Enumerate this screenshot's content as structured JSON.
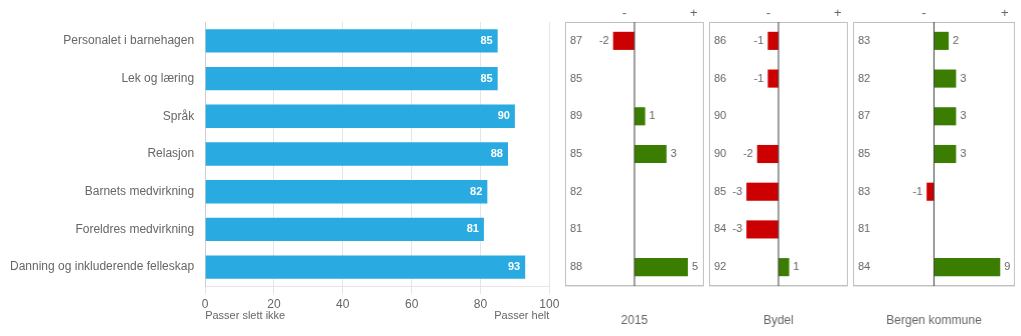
{
  "chart_data": [
    {
      "type": "bar",
      "orientation": "horizontal",
      "categories": [
        "Personalet i barnehagen",
        "Lek og læring",
        "Språk",
        "Relasjon",
        "Barnets medvirkning",
        "Foreldres medvirkning",
        "Danning og inkluderende felleskap"
      ],
      "values": [
        85,
        85,
        90,
        88,
        82,
        81,
        93
      ],
      "color": "#29ABE2",
      "xlim": [
        0,
        100
      ],
      "xticks": [
        0,
        20,
        40,
        60,
        80,
        100
      ],
      "grid": true,
      "data_labels": true,
      "annotations": [
        "Passer slett ikke",
        "Passer helt"
      ]
    },
    {
      "type": "bar",
      "orientation": "horizontal",
      "xlabel": "2015",
      "categories": [
        "Personalet i barnehagen",
        "Lek og læring",
        "Språk",
        "Relasjon",
        "Barnets medvirkning",
        "Foreldres medvirkning",
        "Danning og inkluderende felleskap"
      ],
      "values": [
        -2,
        0,
        1,
        3,
        0,
        0,
        5
      ],
      "reference_values": [
        87,
        85,
        89,
        85,
        82,
        81,
        88
      ],
      "colors": [
        "#CC0000",
        "#3A7D00",
        "#3A7D00",
        "#3A7D00",
        "#3A7D00",
        "#3A7D00",
        "#3A7D00"
      ],
      "xlim": [
        -6.5,
        6.5
      ],
      "grid": false,
      "data_labels": true,
      "tick_labels": false,
      "annotations": [
        "-",
        "+"
      ]
    },
    {
      "type": "bar",
      "orientation": "horizontal",
      "xlabel": "Bydel",
      "categories": [
        "Personalet i barnehagen",
        "Lek og læring",
        "Språk",
        "Relasjon",
        "Barnets medvirkning",
        "Foreldres medvirkning",
        "Danning og inkluderende felleskap"
      ],
      "values": [
        -1,
        -1,
        0,
        -2,
        -3,
        -3,
        1
      ],
      "reference_values": [
        86,
        86,
        90,
        90,
        85,
        84,
        92
      ],
      "colors": [
        "#CC0000",
        "#CC0000",
        "#3A7D00",
        "#CC0000",
        "#CC0000",
        "#CC0000",
        "#3A7D00"
      ],
      "xlim": [
        -6.5,
        6.5
      ],
      "grid": false,
      "data_labels": true,
      "tick_labels": false,
      "annotations": [
        "-",
        "+"
      ]
    },
    {
      "type": "bar",
      "orientation": "horizontal",
      "xlabel": "Bergen kommune",
      "categories": [
        "Personalet i barnehagen",
        "Lek og læring",
        "Språk",
        "Relasjon",
        "Barnets medvirkning",
        "Foreldres medvirkning",
        "Danning og inkluderende felleskap"
      ],
      "values": [
        2,
        3,
        3,
        3,
        -1,
        0,
        9
      ],
      "reference_values": [
        83,
        82,
        87,
        85,
        83,
        81,
        84
      ],
      "colors": [
        "#3A7D00",
        "#3A7D00",
        "#3A7D00",
        "#3A7D00",
        "#CC0000",
        "#3A7D00",
        "#3A7D00"
      ],
      "xlim": [
        -11,
        11
      ],
      "grid": false,
      "data_labels": true,
      "tick_labels": false,
      "annotations": [
        "-",
        "+"
      ]
    }
  ]
}
